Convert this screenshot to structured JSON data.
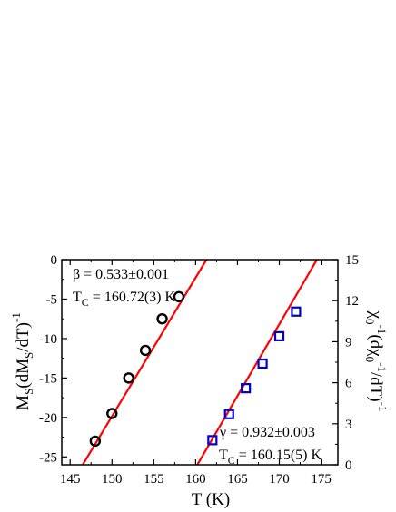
{
  "chart_data": {
    "type": "scatter",
    "title": "",
    "xlabel": "T (K)",
    "ylabel_left": "M_S(dM_S/dT)^-1",
    "ylabel_right": "χ_0^-1(dχ_0^-1/dT)^-1",
    "xlim": [
      144,
      177
    ],
    "ylim_left": [
      -26,
      0
    ],
    "ylim_right": [
      0,
      15
    ],
    "x_ticks": [
      145,
      150,
      155,
      160,
      165,
      170,
      175
    ],
    "y_left_ticks": [
      0,
      -5,
      -10,
      -15,
      -20,
      -25
    ],
    "y_right_ticks": [
      0,
      3,
      6,
      9,
      12,
      15
    ],
    "x_tick_labels": [
      "145",
      "150",
      "155",
      "160",
      "165",
      "170",
      "175"
    ],
    "y_left_tick_labels": [
      "0",
      "-5",
      "-10",
      "-15",
      "-20",
      "-25"
    ],
    "y_right_tick_labels": [
      "0",
      "3",
      "6",
      "9",
      "12",
      "15"
    ],
    "grid": false,
    "series": [
      {
        "axis": "left",
        "marker": "circle",
        "color": "#000000",
        "points": [
          {
            "x": 148,
            "y": -23.0
          },
          {
            "x": 150,
            "y": -19.5
          },
          {
            "x": 152,
            "y": -15.0
          },
          {
            "x": 154,
            "y": -11.5
          },
          {
            "x": 156,
            "y": -7.5
          },
          {
            "x": 158,
            "y": -4.7
          }
        ],
        "fit": {
          "color": "#ff0000",
          "x": [
            146.5,
            161.3
          ],
          "y": [
            -26,
            0
          ]
        }
      },
      {
        "axis": "right",
        "marker": "square",
        "color": "#0000cc",
        "points": [
          {
            "x": 162,
            "y": 1.8
          },
          {
            "x": 164,
            "y": 3.7
          },
          {
            "x": 166,
            "y": 5.6
          },
          {
            "x": 168,
            "y": 7.4
          },
          {
            "x": 170,
            "y": 9.4
          },
          {
            "x": 172,
            "y": 11.2
          }
        ],
        "fit": {
          "color": "#ff0000",
          "x": [
            160.2,
            174.5
          ],
          "y": [
            0,
            15
          ]
        }
      }
    ],
    "annotations": {
      "beta": "β = 0.533±0.001",
      "tc_left_prefix": "T",
      "tc_left_sub": "C",
      "tc_left_value": " = 160.72(3) K",
      "gamma": "γ = 0.932±0.003",
      "tc_right_prefix": "T",
      "tc_right_sub": "C",
      "tc_right_value": " = 160.15(5) K"
    }
  }
}
